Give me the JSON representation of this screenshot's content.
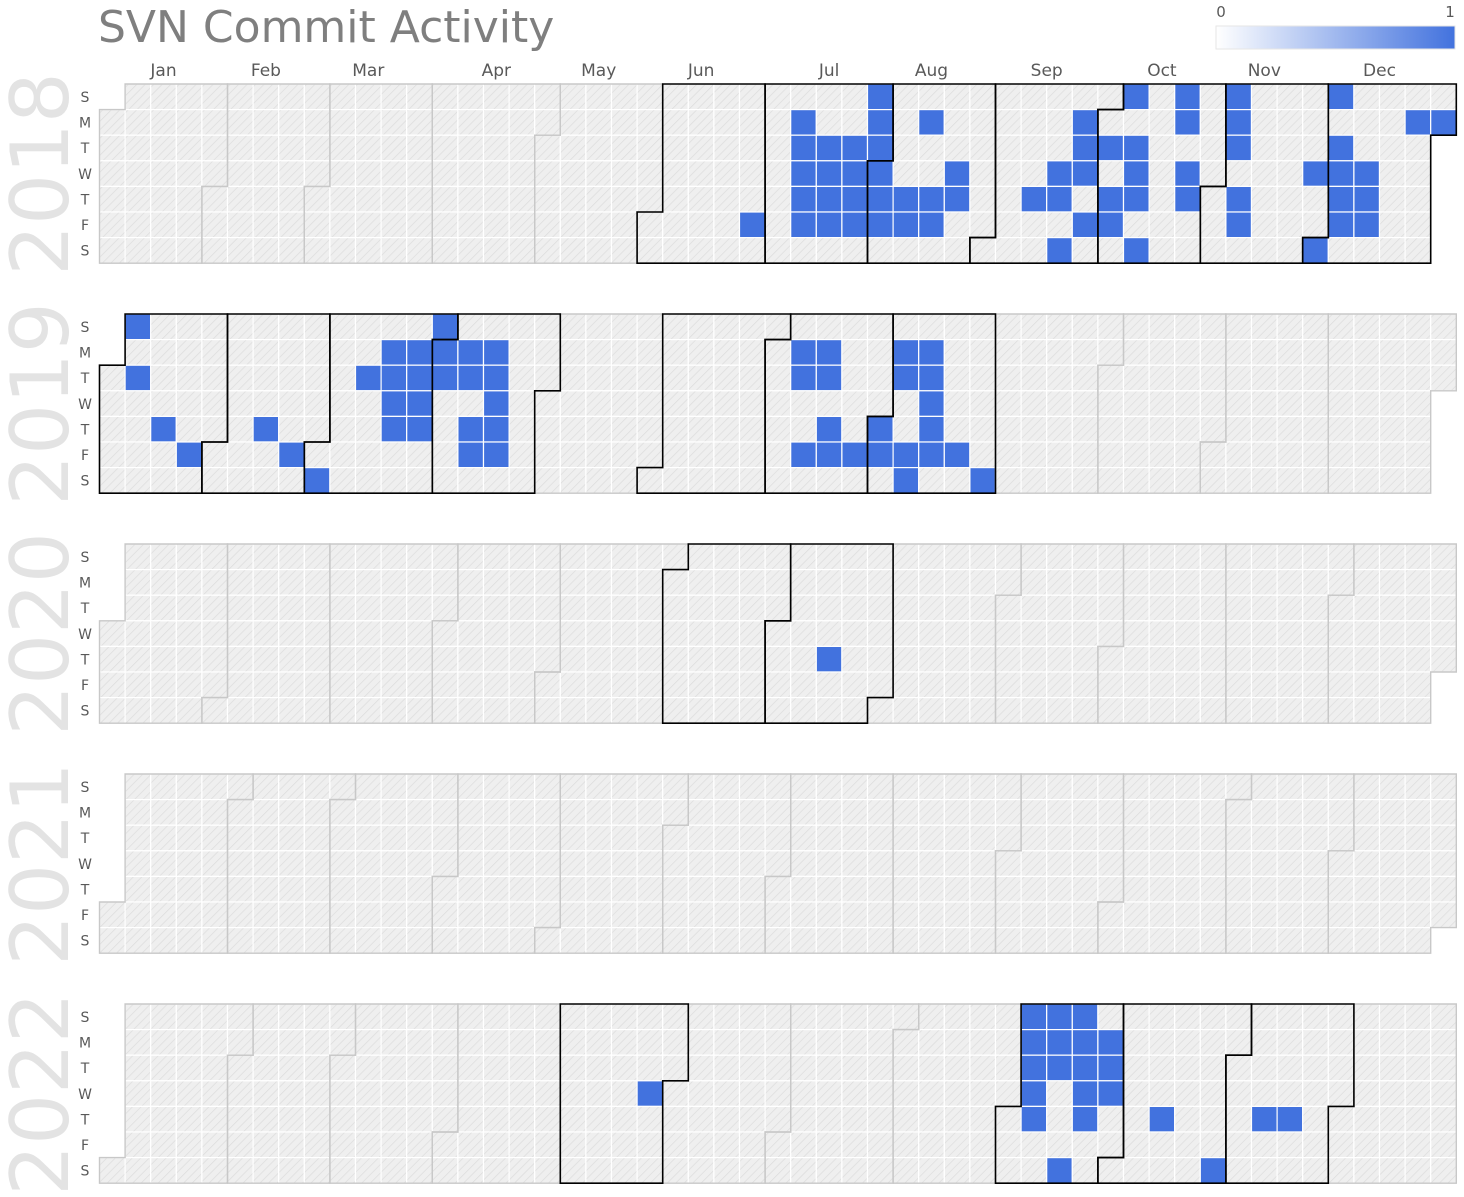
{
  "chart_data": {
    "type": "heatmap",
    "title": "SVN Commit Activity",
    "legend": {
      "min_label": "0",
      "max_label": "1",
      "min": 0,
      "max": 1,
      "placement": "top-right"
    },
    "colors": {
      "low": "#ffffff",
      "high": "#4272de",
      "missing": "#efefef",
      "border_active": "#000000",
      "border_inactive": "#c8c8c8"
    },
    "month_labels": [
      "Jan",
      "Feb",
      "Mar",
      "Apr",
      "May",
      "Jun",
      "Jul",
      "Aug",
      "Sep",
      "Oct",
      "Nov",
      "Dec"
    ],
    "day_labels": [
      "S",
      "M",
      "T",
      "W",
      "T",
      "F",
      "S"
    ],
    "years": [
      {
        "year": "2018",
        "active_months": [
          6,
          7,
          8,
          9,
          10,
          11,
          12
        ],
        "days": [
          "2018-06-29",
          "2018-07-09",
          "2018-07-10",
          "2018-07-11",
          "2018-07-12",
          "2018-07-13",
          "2018-07-17",
          "2018-07-18",
          "2018-07-19",
          "2018-07-20",
          "2018-07-24",
          "2018-07-25",
          "2018-07-26",
          "2018-07-27",
          "2018-07-29",
          "2018-07-30",
          "2018-07-31",
          "2018-08-01",
          "2018-08-02",
          "2018-08-03",
          "2018-08-09",
          "2018-08-10",
          "2018-08-13",
          "2018-08-16",
          "2018-08-17",
          "2018-08-22",
          "2018-08-23",
          "2018-09-13",
          "2018-09-19",
          "2018-09-20",
          "2018-09-22",
          "2018-09-24",
          "2018-09-25",
          "2018-09-26",
          "2018-09-28",
          "2018-10-02",
          "2018-10-04",
          "2018-10-05",
          "2018-10-07",
          "2018-10-09",
          "2018-10-10",
          "2018-10-11",
          "2018-10-13",
          "2018-10-21",
          "2018-10-22",
          "2018-10-24",
          "2018-10-25",
          "2018-11-04",
          "2018-11-05",
          "2018-11-06",
          "2018-11-08",
          "2018-11-09",
          "2018-11-28",
          "2018-12-01",
          "2018-12-02",
          "2018-12-04",
          "2018-12-05",
          "2018-12-06",
          "2018-12-07",
          "2018-12-12",
          "2018-12-13",
          "2018-12-14",
          "2018-12-24",
          "2018-12-31"
        ]
      },
      {
        "year": "2019",
        "active_months": [
          1,
          2,
          3,
          4,
          6,
          7,
          8
        ],
        "days": [
          "2019-01-06",
          "2019-01-08",
          "2019-01-17",
          "2019-01-25",
          "2019-02-14",
          "2019-02-22",
          "2019-03-02",
          "2019-03-12",
          "2019-03-18",
          "2019-03-19",
          "2019-03-20",
          "2019-03-21",
          "2019-03-25",
          "2019-03-26",
          "2019-03-27",
          "2019-03-28",
          "2019-03-31",
          "2019-04-01",
          "2019-04-02",
          "2019-04-08",
          "2019-04-09",
          "2019-04-11",
          "2019-04-12",
          "2019-04-15",
          "2019-04-16",
          "2019-04-17",
          "2019-04-18",
          "2019-04-19",
          "2019-07-08",
          "2019-07-09",
          "2019-07-12",
          "2019-07-15",
          "2019-07-16",
          "2019-07-18",
          "2019-07-19",
          "2019-07-26",
          "2019-08-01",
          "2019-08-02",
          "2019-08-05",
          "2019-08-06",
          "2019-08-09",
          "2019-08-10",
          "2019-08-12",
          "2019-08-13",
          "2019-08-14",
          "2019-08-15",
          "2019-08-16",
          "2019-08-23",
          "2019-08-31"
        ]
      },
      {
        "year": "2020",
        "active_months": [
          6,
          7
        ],
        "days": [
          "2020-07-16"
        ]
      },
      {
        "year": "2021",
        "active_months": [],
        "days": []
      },
      {
        "year": "2022",
        "active_months": [
          5,
          9,
          10,
          11
        ],
        "days": [
          "2022-05-25",
          "2022-09-04",
          "2022-09-05",
          "2022-09-06",
          "2022-09-07",
          "2022-09-08",
          "2022-09-11",
          "2022-09-12",
          "2022-09-13",
          "2022-09-17",
          "2022-09-18",
          "2022-09-19",
          "2022-09-20",
          "2022-09-21",
          "2022-09-22",
          "2022-09-26",
          "2022-09-27",
          "2022-09-28",
          "2022-10-13",
          "2022-10-29",
          "2022-11-10",
          "2022-11-17"
        ]
      }
    ]
  }
}
